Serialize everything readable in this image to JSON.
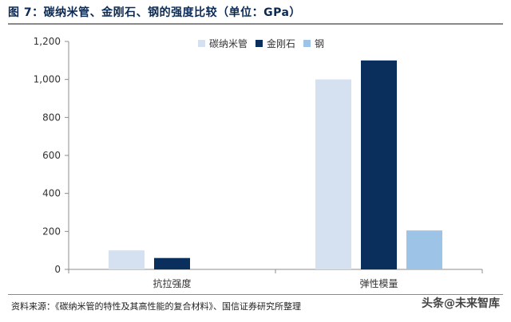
{
  "figure_title": "图 7：碳纳米管、金刚石、钢的强度比较（单位：GPa）",
  "source_note": "资料来源：《碳纳米管的特性及其高性能的复合材料》、国信证券研究所整理",
  "watermark": "头条@未来智库",
  "chart_data": {
    "type": "bar",
    "categories": [
      "抗拉强度",
      "弹性模量"
    ],
    "series": [
      {
        "name": "碳纳米管",
        "color": "#d5e0f1",
        "values": [
          100,
          1000
        ]
      },
      {
        "name": "金刚石",
        "color": "#0b2f5c",
        "values": [
          60,
          1100
        ]
      },
      {
        "name": "钢",
        "color": "#9dc3e6",
        "values": [
          0,
          205
        ]
      }
    ],
    "ylim": [
      0,
      1200
    ],
    "yticks": [
      0,
      200,
      400,
      600,
      800,
      1000,
      1200
    ],
    "ytick_labels": [
      "0",
      "200",
      "400",
      "600",
      "800",
      "1,000",
      "1,200"
    ],
    "legend_position": "top-right",
    "grid": false
  }
}
